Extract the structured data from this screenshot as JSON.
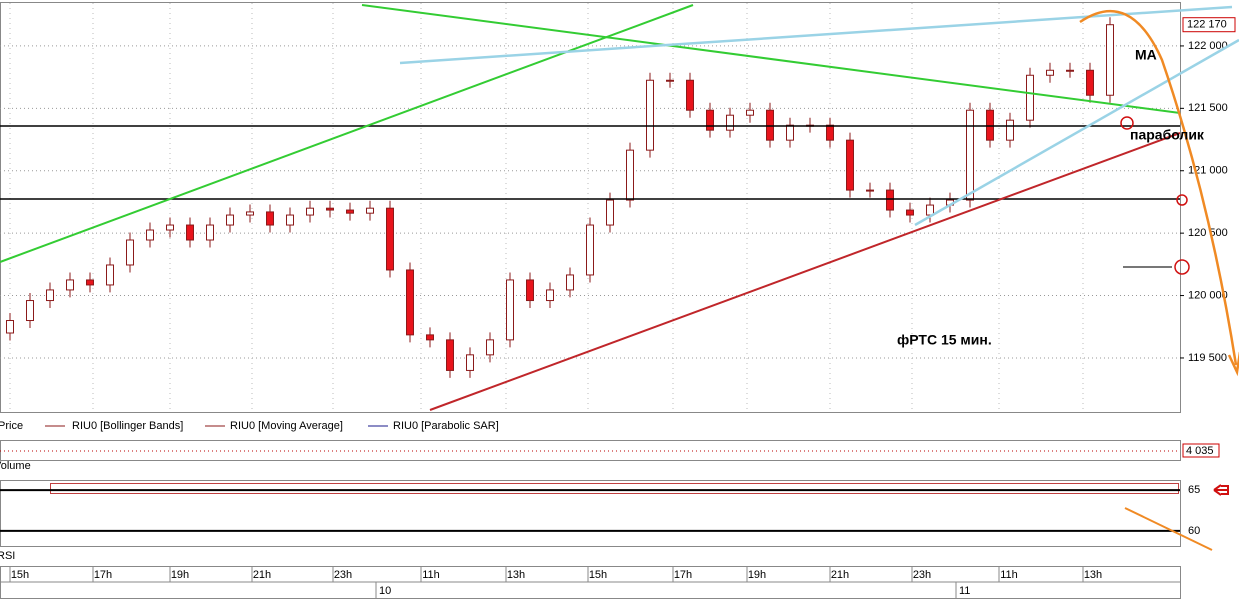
{
  "chart_data": {
    "type": "candlestick",
    "open": [
      119700,
      119800,
      119960,
      120045,
      120125,
      120085,
      120245,
      120445,
      120525,
      120565,
      120445,
      120565,
      120645,
      120670,
      120565,
      120645,
      120700,
      120685,
      120660,
      120700,
      120205,
      119685,
      119645,
      119400,
      119525,
      119645,
      120125,
      119960,
      120045,
      120165,
      120565,
      120765,
      121165,
      121725,
      121725,
      121485,
      121325,
      121445,
      121485,
      121245,
      121365,
      121365,
      121245,
      120845,
      120845,
      120685,
      120645,
      120725,
      120765,
      121485,
      121245,
      121405,
      121765,
      121805,
      121805,
      121605
    ],
    "high": [
      119860,
      120020,
      120105,
      120185,
      120185,
      120305,
      120505,
      120585,
      120625,
      120625,
      120625,
      120705,
      120730,
      120730,
      120705,
      120760,
      120760,
      120745,
      120760,
      120760,
      120265,
      119745,
      119705,
      119585,
      119705,
      120185,
      120185,
      120105,
      120225,
      120625,
      120825,
      121225,
      121785,
      121785,
      121785,
      121545,
      121505,
      121545,
      121545,
      121425,
      121425,
      121425,
      121305,
      120905,
      120905,
      120745,
      120785,
      120825,
      121545,
      121545,
      121465,
      121825,
      121865,
      121865,
      121865,
      122230
    ],
    "low": [
      119640,
      119740,
      119900,
      119985,
      120025,
      120025,
      120185,
      120385,
      120465,
      120385,
      120385,
      120505,
      120585,
      120505,
      120505,
      120585,
      120625,
      120600,
      120600,
      120145,
      119625,
      119585,
      119340,
      119340,
      119465,
      119585,
      119900,
      119900,
      119985,
      120105,
      120505,
      120705,
      121105,
      121665,
      121425,
      121265,
      121265,
      121385,
      121185,
      121185,
      121305,
      121185,
      120785,
      120785,
      120625,
      120585,
      120585,
      120665,
      120705,
      121185,
      121185,
      121345,
      121705,
      121745,
      121545,
      121545
    ],
    "close": [
      119800,
      119960,
      120045,
      120125,
      120085,
      120245,
      120445,
      120525,
      120565,
      120445,
      120565,
      120645,
      120670,
      120565,
      120645,
      120700,
      120685,
      120660,
      120700,
      120205,
      119685,
      119645,
      119400,
      119525,
      119645,
      120125,
      119960,
      120045,
      120165,
      120565,
      120765,
      121165,
      121725,
      121725,
      121485,
      121325,
      121445,
      121485,
      121245,
      121365,
      121365,
      121245,
      120845,
      120845,
      120685,
      120645,
      120725,
      120765,
      121485,
      121245,
      121405,
      121765,
      121805,
      121805,
      121605,
      122170
    ],
    "up_color": "#ffffff",
    "down_color": "#e8141c",
    "edge_color": "#8b1a1a",
    "ylim": [
      119067,
      122368
    ],
    "yticks": [
      {
        "value": 119500,
        "label": "119 500"
      },
      {
        "value": 120000,
        "label": "120 000"
      },
      {
        "value": 120500,
        "label": "120 500"
      },
      {
        "value": 121000,
        "label": "121 000"
      },
      {
        "value": 121500,
        "label": "121 500"
      },
      {
        "value": 122000,
        "label": "122 000"
      }
    ],
    "last_price": {
      "value": 122170,
      "label": "122 170"
    },
    "legend": [
      "Price",
      "RIU0 [Bollinger Bands]",
      "RIU0 [Moving Average]",
      "RIU0 [Parabolic SAR]"
    ],
    "volume_panel": {
      "title": "Volume",
      "last": {
        "value": 4035,
        "label": "4 035"
      }
    },
    "rsi_panel": {
      "title": "RSI",
      "ylim": [
        57.9,
        66
      ],
      "yticks": [
        60,
        65
      ]
    },
    "time_labels": [
      "15h",
      "17h",
      "19h",
      "21h",
      "23h",
      "11h",
      "13h",
      "15h",
      "17h",
      "19h",
      "21h",
      "23h",
      "11h",
      "13h"
    ],
    "day_labels": [
      "10",
      "11"
    ],
    "annotations": [
      "MA",
      "параболик",
      "фРТС  15 мин."
    ],
    "grid": true
  }
}
